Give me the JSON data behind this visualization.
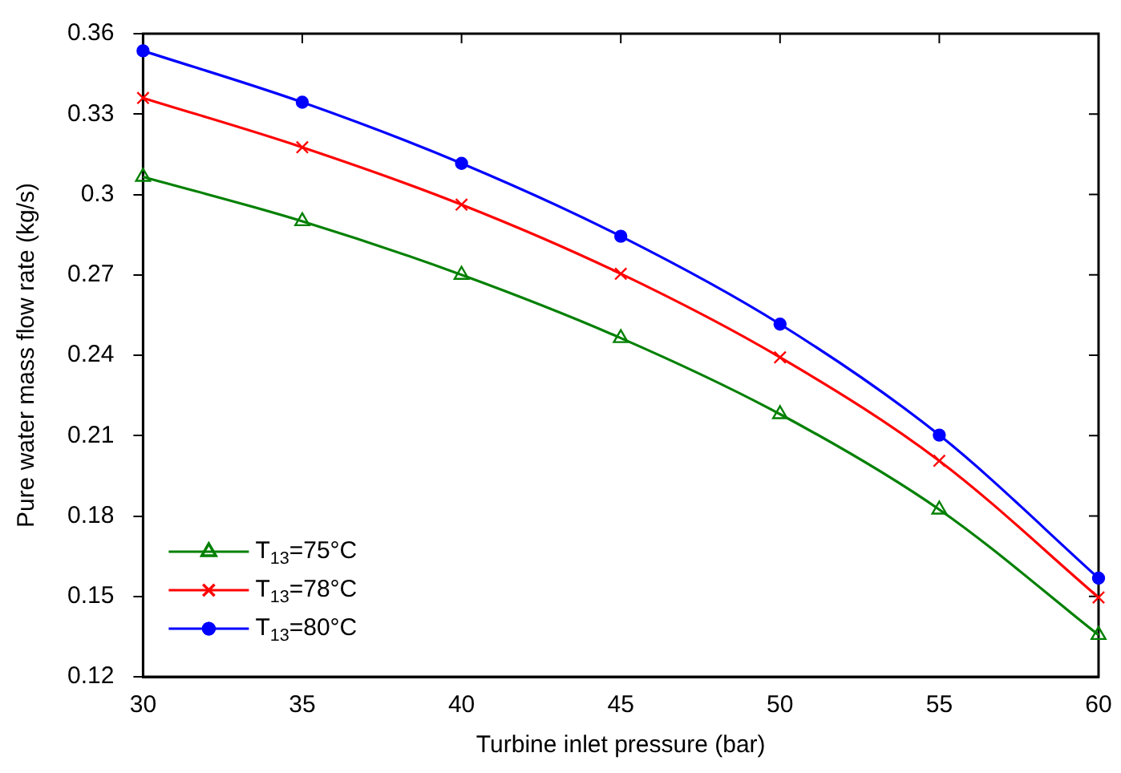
{
  "chart_data": {
    "type": "line",
    "xlabel": "Turbine inlet pressure (bar)",
    "ylabel": "Pure water mass flow rate (kg/s)",
    "x": [
      30,
      35,
      40,
      45,
      50,
      55,
      60
    ],
    "xlim": [
      30,
      60
    ],
    "xticks": [
      30,
      35,
      40,
      45,
      50,
      55,
      60
    ],
    "ylim": [
      0.12,
      0.36
    ],
    "yticks": [
      0.12,
      0.15,
      0.18,
      0.21,
      0.24,
      0.27,
      0.3,
      0.33,
      0.36
    ],
    "grid": false,
    "legend": "bottom left",
    "series": [
      {
        "name": "T$_{13}$=75°C",
        "color": "#008000",
        "marker": "triangle",
        "values": [
          0.3066,
          0.29,
          0.27,
          0.2464,
          0.218,
          0.1824,
          0.1356
        ]
      },
      {
        "name": "T$_{13}$=78°C",
        "color": "#ff0000",
        "marker": "cross",
        "values": [
          0.336,
          0.3176,
          0.2962,
          0.2704,
          0.2392,
          0.2006,
          0.1496
        ]
      },
      {
        "name": "T$_{13}$=80°C",
        "color": "#0000ff",
        "marker": "circle",
        "values": [
          0.3536,
          0.3344,
          0.3116,
          0.2844,
          0.2516,
          0.2102,
          0.1568
        ]
      }
    ]
  }
}
